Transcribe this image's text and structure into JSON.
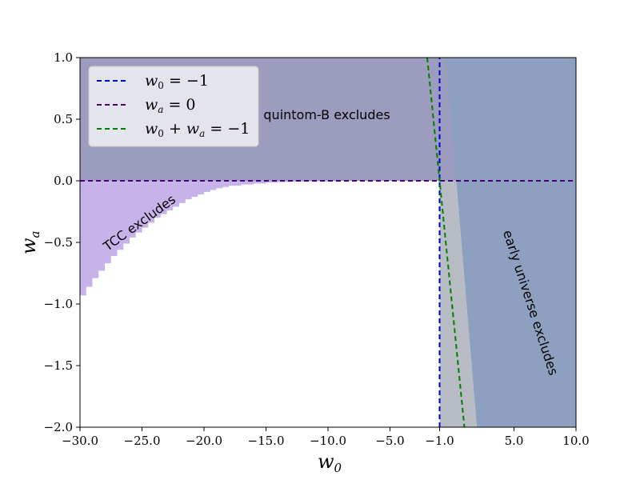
{
  "chart_data": {
    "type": "area",
    "title": "",
    "xlabel": "w_0",
    "ylabel": "w_a",
    "xlim": [
      -30,
      10
    ],
    "ylim": [
      -2,
      1
    ],
    "xticks": [
      "−30.0",
      "−25.0",
      "−20.0",
      "−15.0",
      "−10.0",
      "−5.0",
      "−1.0",
      "5.0",
      "10.0"
    ],
    "xtick_values": [
      -30,
      -25,
      -20,
      -15,
      -10,
      -5,
      -1,
      5,
      10
    ],
    "yticks": [
      "−2.0",
      "−1.5",
      "−1.0",
      "−0.5",
      "0.0",
      "0.5",
      "1.0"
    ],
    "ytick_values": [
      -2,
      -1.5,
      -1,
      -0.5,
      0,
      0.5,
      1
    ],
    "grid": false,
    "legend_position": "top-left",
    "lines": [
      {
        "name": "w_0 = −1",
        "color": "#0000cc",
        "style": "dashed",
        "x": [
          -1,
          -1
        ],
        "y": [
          -2,
          1
        ]
      },
      {
        "name": "w_a = 0",
        "color": "#4b0082",
        "style": "dashed",
        "x": [
          -30,
          10
        ],
        "y": [
          0,
          0
        ]
      },
      {
        "name": "w_0 + w_a = −1",
        "color": "#008000",
        "style": "dashed",
        "x": [
          -2,
          1
        ],
        "y": [
          1,
          -2
        ]
      }
    ],
    "regions": [
      {
        "name": "TCC excludes",
        "color": "#c5b3ea",
        "boundary": {
          "x": [
            -30,
            -29.5,
            -29,
            -28.5,
            -28,
            -27.5,
            -27,
            -26.5,
            -26,
            -25.5,
            -25,
            -24.5,
            -24,
            -23.5,
            -23,
            -22.5,
            -22,
            -21.5,
            -21,
            -20.5,
            -20,
            -19.5,
            -19,
            -18.5,
            -18,
            -17,
            -16,
            -15,
            -14,
            -13,
            -12,
            -11,
            -10,
            -9,
            -8.5
          ],
          "y": [
            -0.93,
            -0.86,
            -0.79,
            -0.73,
            -0.67,
            -0.61,
            -0.56,
            -0.51,
            -0.46,
            -0.42,
            -0.38,
            -0.34,
            -0.3,
            -0.27,
            -0.24,
            -0.21,
            -0.18,
            -0.15,
            -0.13,
            -0.11,
            -0.09,
            -0.075,
            -0.06,
            -0.05,
            -0.04,
            -0.03,
            -0.022,
            -0.015,
            -0.01,
            -0.007,
            -0.005,
            -0.003,
            -0.002,
            -0.001,
            0
          ]
        }
      },
      {
        "name": "quintom-B excludes",
        "color": "#9c9cbf",
        "x_range": [
          -30,
          10
        ],
        "y_range": [
          0,
          1
        ]
      },
      {
        "name": "early universe excludes",
        "color": "#8da0bf",
        "boundary_x_at_ylim": [
          2.0,
          -0.5
        ]
      }
    ],
    "annotations": [
      {
        "text": "quintom-B excludes",
        "x": -15.2,
        "y": 0.5
      },
      {
        "text": "TCC excludes",
        "x": -25,
        "y": -0.37,
        "rotation": -36
      },
      {
        "text": "early universe excludes",
        "x": 6,
        "y": -1.0,
        "rotation": 72
      }
    ]
  }
}
